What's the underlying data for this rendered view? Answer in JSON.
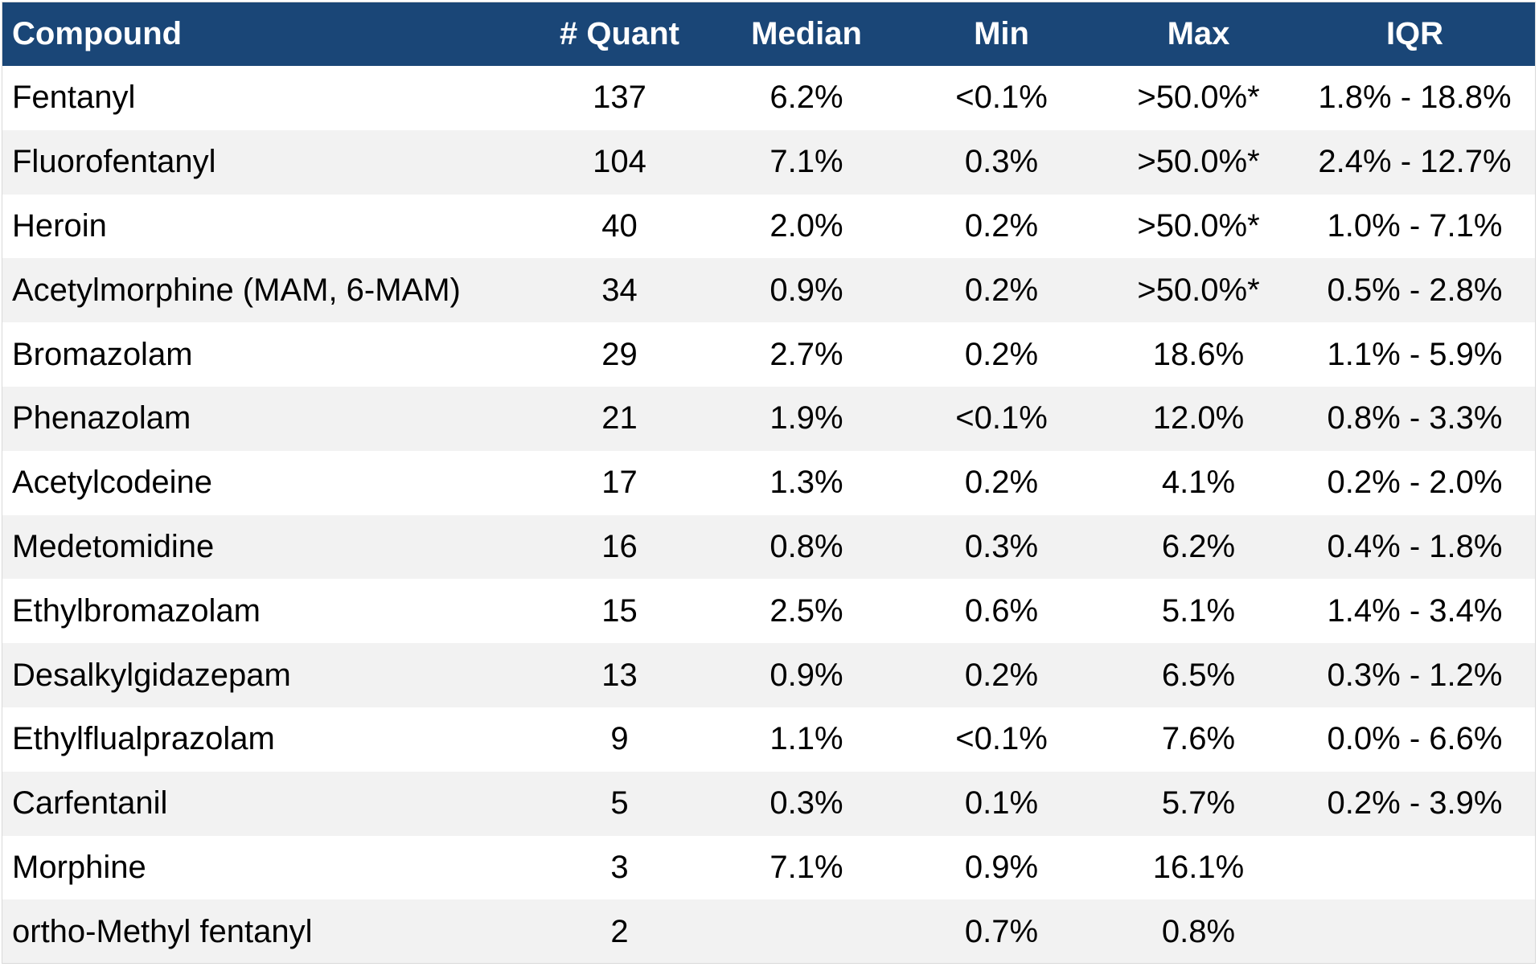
{
  "colors": {
    "header_background": "#1a4677",
    "header_text": "#ffffff",
    "row_alt_background": "#f2f2f2"
  },
  "table": {
    "columns": [
      "Compound",
      "# Quant",
      "Median",
      "Min",
      "Max",
      "IQR"
    ],
    "rows": [
      [
        "Fentanyl",
        "137",
        "6.2%",
        "<0.1%",
        ">50.0%*",
        "1.8% - 18.8%"
      ],
      [
        "Fluorofentanyl",
        "104",
        "7.1%",
        "0.3%",
        ">50.0%*",
        "2.4% - 12.7%"
      ],
      [
        "Heroin",
        "40",
        "2.0%",
        "0.2%",
        ">50.0%*",
        "1.0% - 7.1%"
      ],
      [
        "Acetylmorphine (MAM, 6-MAM)",
        "34",
        "0.9%",
        "0.2%",
        ">50.0%*",
        "0.5% - 2.8%"
      ],
      [
        "Bromazolam",
        "29",
        "2.7%",
        "0.2%",
        "18.6%",
        "1.1% - 5.9%"
      ],
      [
        "Phenazolam",
        "21",
        "1.9%",
        "<0.1%",
        "12.0%",
        "0.8% - 3.3%"
      ],
      [
        "Acetylcodeine",
        "17",
        "1.3%",
        "0.2%",
        "4.1%",
        "0.2% - 2.0%"
      ],
      [
        "Medetomidine",
        "16",
        "0.8%",
        "0.3%",
        "6.2%",
        "0.4% - 1.8%"
      ],
      [
        "Ethylbromazolam",
        "15",
        "2.5%",
        "0.6%",
        "5.1%",
        "1.4% - 3.4%"
      ],
      [
        "Desalkylgidazepam",
        "13",
        "0.9%",
        "0.2%",
        "6.5%",
        "0.3% - 1.2%"
      ],
      [
        "Ethylflualprazolam",
        "9",
        "1.1%",
        "<0.1%",
        "7.6%",
        "0.0% - 6.6%"
      ],
      [
        "Carfentanil",
        "5",
        "0.3%",
        "0.1%",
        "5.7%",
        "0.2% - 3.9%"
      ],
      [
        "Morphine",
        "3",
        "7.1%",
        "0.9%",
        "16.1%",
        ""
      ],
      [
        "ortho-Methyl fentanyl",
        "2",
        "",
        "0.7%",
        "0.8%",
        ""
      ]
    ]
  }
}
